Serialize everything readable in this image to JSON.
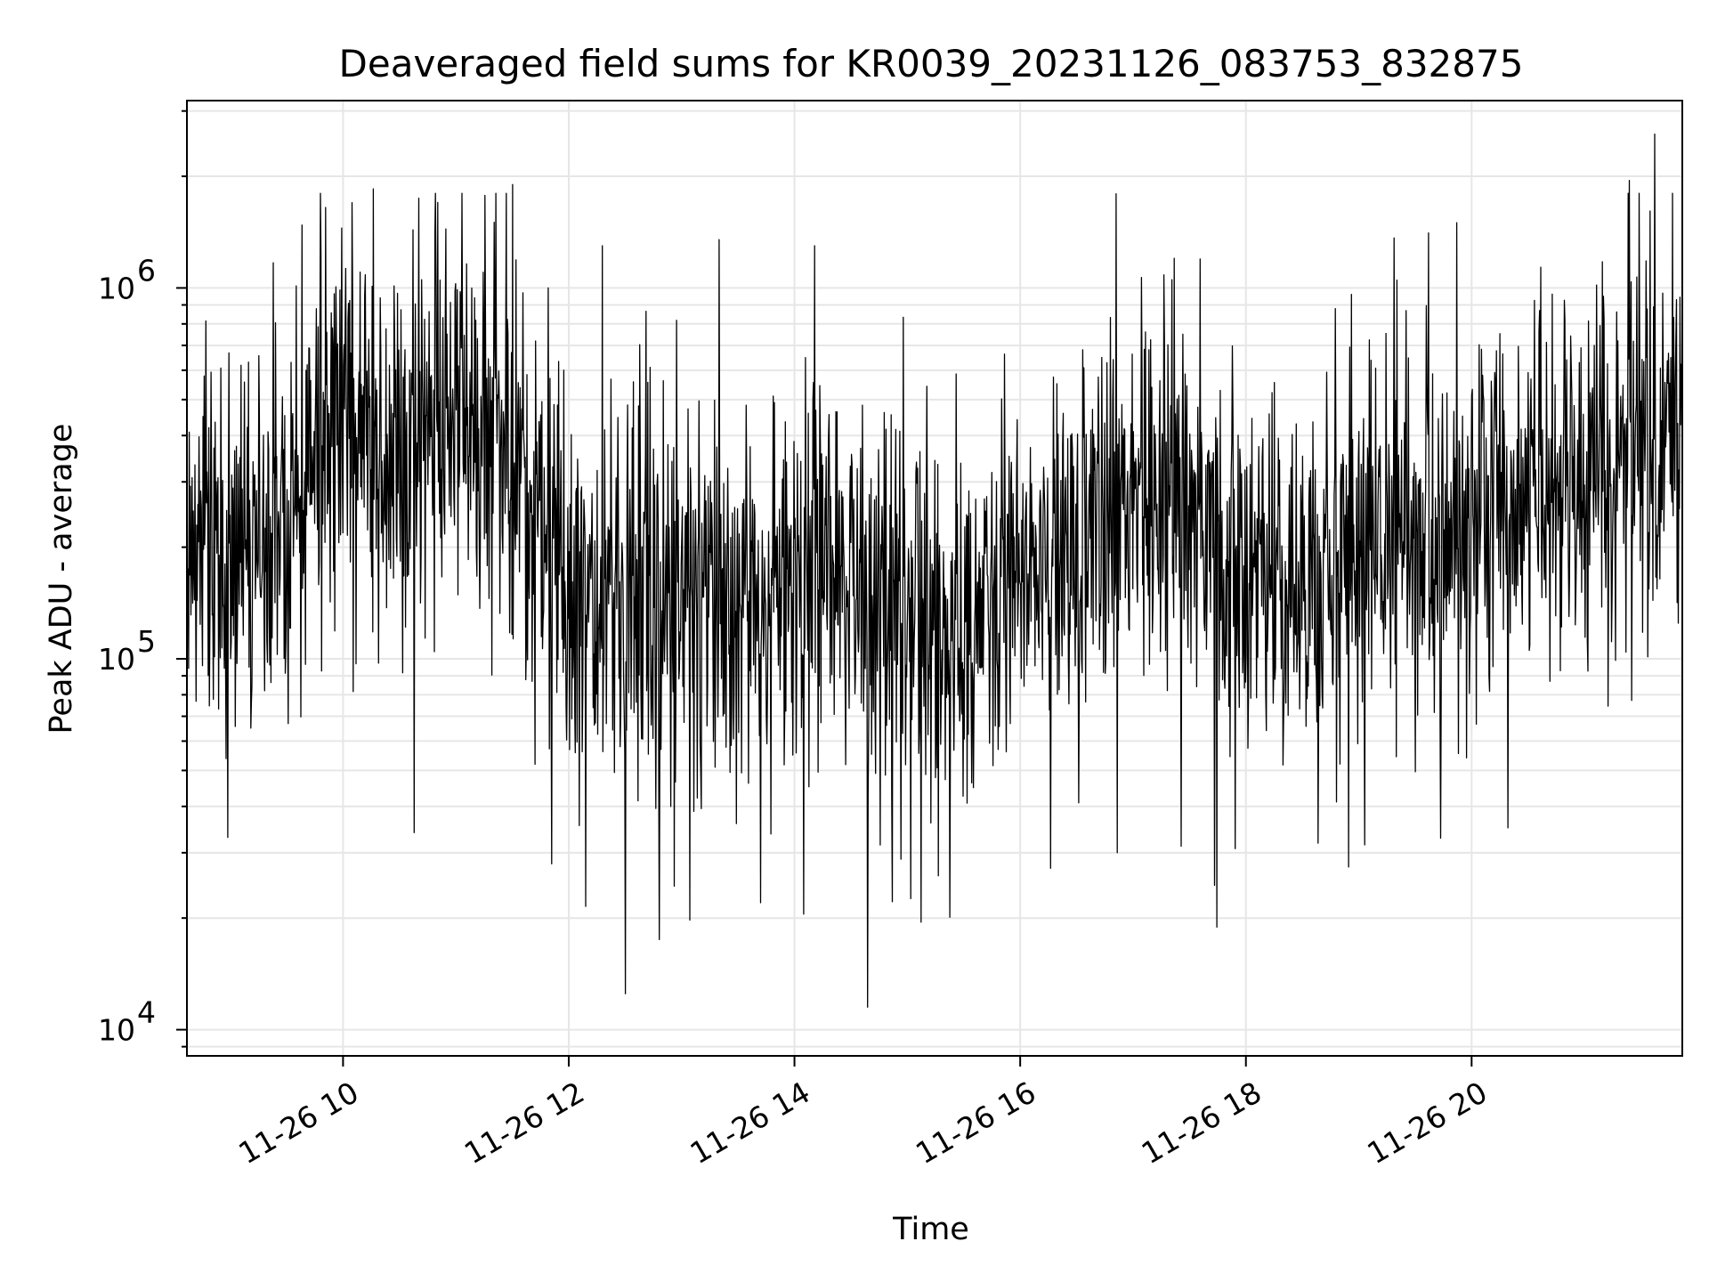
{
  "chart_data": {
    "type": "line",
    "title": "Deaveraged field sums for KR0039_20231126_083753_832875",
    "xlabel": "Time",
    "ylabel": "Peak ADU - average",
    "yscale": "log",
    "ylim": [
      8500,
      3200000
    ],
    "xlim_hours": [
      8.6167,
      21.8667
    ],
    "x_ticks": [
      {
        "hour": 10,
        "label": "11-26 10"
      },
      {
        "hour": 12,
        "label": "11-26 12"
      },
      {
        "hour": 14,
        "label": "11-26 14"
      },
      {
        "hour": 16,
        "label": "11-26 16"
      },
      {
        "hour": 18,
        "label": "11-26 18"
      },
      {
        "hour": 20,
        "label": "11-26 20"
      }
    ],
    "y_ticks": [
      {
        "value": 10000,
        "base": "10",
        "exp": "4"
      },
      {
        "value": 100000,
        "base": "10",
        "exp": "5"
      },
      {
        "value": 1000000,
        "base": "10",
        "exp": "6"
      }
    ],
    "grid": true,
    "line_color": "#000000",
    "grid_color": "#e6e6e6",
    "trend_hours": [
      8.62,
      9.0,
      9.5,
      9.8,
      10.0,
      10.5,
      11.0,
      11.5,
      11.8,
      12.0,
      12.5,
      13.0,
      13.5,
      14.0,
      14.4,
      14.8,
      15.0,
      15.5,
      16.0,
      16.5,
      17.0,
      17.5,
      18.0,
      18.5,
      19.0,
      19.5,
      19.8,
      20.0,
      20.5,
      21.0,
      21.5,
      21.87
    ],
    "trend_values": [
      230000,
      200000,
      220000,
      380000,
      450000,
      330000,
      480000,
      400000,
      200000,
      150000,
      150000,
      140000,
      120000,
      150000,
      200000,
      120000,
      130000,
      110000,
      170000,
      220000,
      260000,
      240000,
      180000,
      150000,
      200000,
      230000,
      190000,
      240000,
      260000,
      300000,
      360000,
      400000
    ],
    "extreme_points": [
      {
        "hour": 9.99,
        "value": 1450000
      },
      {
        "hour": 10.27,
        "value": 1850000
      },
      {
        "hour": 10.84,
        "value": 1700000
      },
      {
        "hour": 11.5,
        "value": 1900000
      },
      {
        "hour": 12.3,
        "value": 1300000
      },
      {
        "hour": 13.33,
        "value": 1350000
      },
      {
        "hour": 14.18,
        "value": 1300000
      },
      {
        "hour": 19.87,
        "value": 1500000
      },
      {
        "hour": 21.4,
        "value": 1950000
      },
      {
        "hour": 21.62,
        "value": 2600000
      },
      {
        "hour": 8.98,
        "value": 33000
      },
      {
        "hour": 10.63,
        "value": 34000
      },
      {
        "hour": 11.85,
        "value": 28000
      },
      {
        "hour": 12.15,
        "value": 21500
      },
      {
        "hour": 12.5,
        "value": 12500
      },
      {
        "hour": 12.8,
        "value": 17500
      },
      {
        "hour": 13.7,
        "value": 22000
      },
      {
        "hour": 14.08,
        "value": 20500
      },
      {
        "hour": 14.65,
        "value": 11500
      },
      {
        "hour": 15.12,
        "value": 19500
      },
      {
        "hour": 16.86,
        "value": 30000
      },
      {
        "hour": 17.72,
        "value": 24500
      },
      {
        "hour": 19.05,
        "value": 31500
      }
    ]
  }
}
